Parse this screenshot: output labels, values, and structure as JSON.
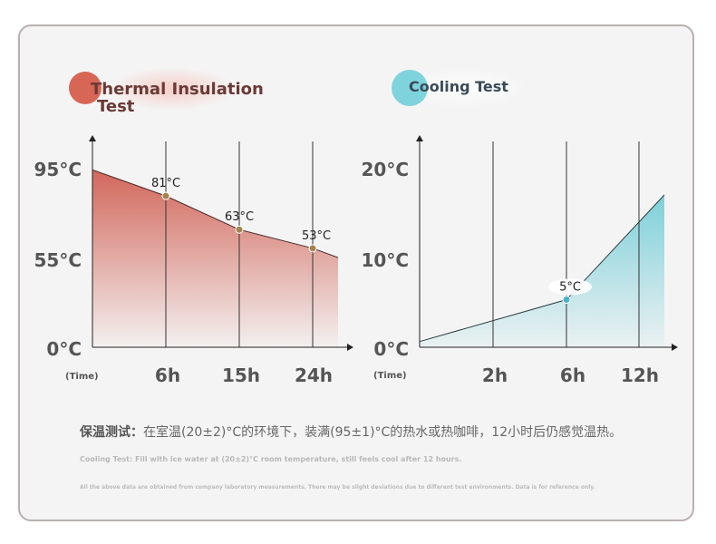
{
  "chart_data": [
    {
      "type": "area",
      "title": "Thermal Insulation Test",
      "title_lines": [
        "Thermal Insulation",
        "Test"
      ],
      "xlabel": "(Time)",
      "x_ticks": [
        "6h",
        "15h",
        "24h"
      ],
      "y_ticks": [
        "0°C",
        "55°C",
        "95°C"
      ],
      "points": [
        {
          "x": "0h",
          "y": 95
        },
        {
          "x": "6h",
          "y": 81,
          "label": "81°C"
        },
        {
          "x": "15h",
          "y": 63,
          "label": "63°C"
        },
        {
          "x": "24h",
          "y": 53,
          "label": "53°C"
        },
        {
          "x": "end",
          "y": 48
        }
      ],
      "color": "#d2675b"
    },
    {
      "type": "area",
      "title": "Cooling Test",
      "xlabel": "(Time)",
      "x_ticks": [
        "2h",
        "6h",
        "12h"
      ],
      "y_ticks": [
        "0°C",
        "10°C",
        "20°C"
      ],
      "points": [
        {
          "x": "0h",
          "y": 0.6
        },
        {
          "x": "6h",
          "y": 5,
          "label": "5°C"
        },
        {
          "x": "end",
          "y": 16
        }
      ],
      "color": "#7fd0da"
    }
  ],
  "notes": {
    "cn_label": "保温测试：",
    "cn_text": "在室温(20±2)°C的环境下，装满(95±1)°C的热水或热咖啡，12小时后仍感觉温热。",
    "cooling_note": "Cooling Test: Fill with ice water at (20±2)°C room temperature, still feels cool after 12 hours.",
    "disclaimer": "All the above data are obtained from company laboratory measurements. There may be slight deviations due to different test environments. Data is for reference only."
  }
}
